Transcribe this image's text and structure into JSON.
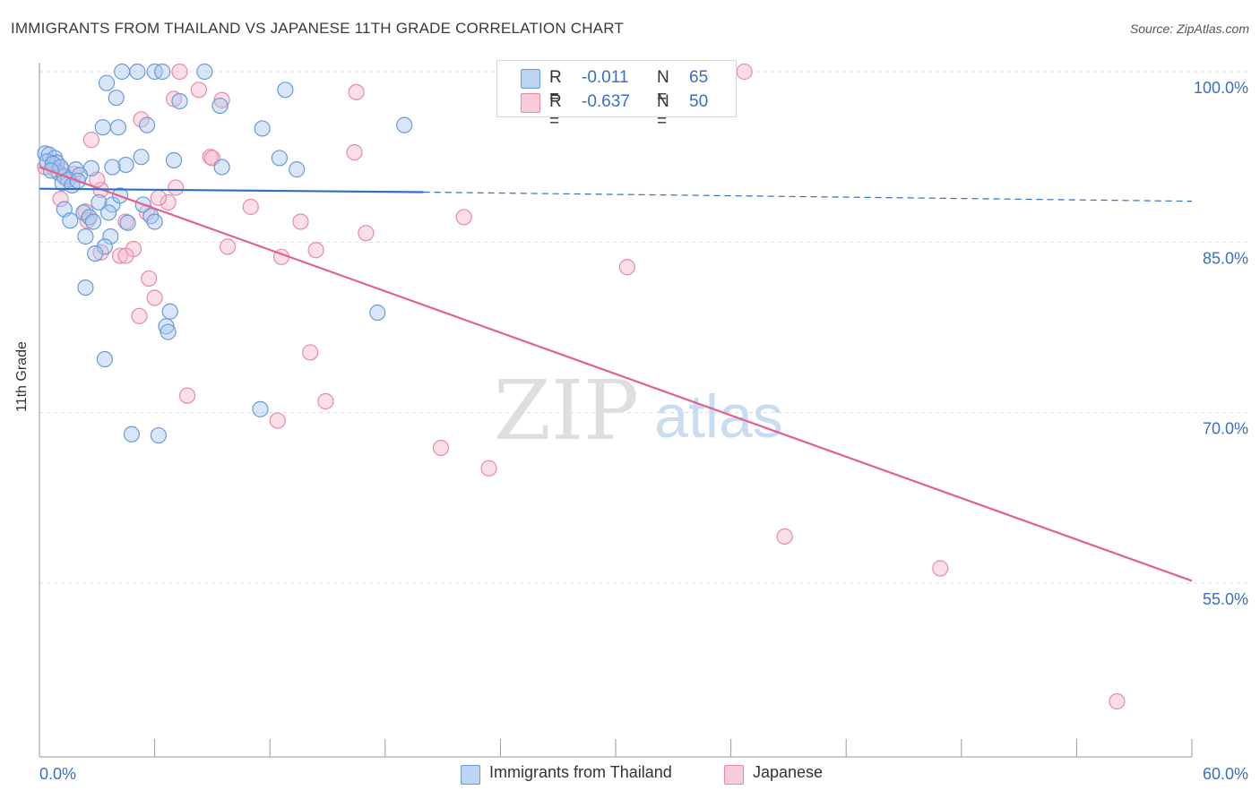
{
  "header": {
    "title": "IMMIGRANTS FROM THAILAND VS JAPANESE 11TH GRADE CORRELATION CHART",
    "source": "Source: ZipAtlas.com"
  },
  "watermark": {
    "zip": "ZIP",
    "atlas": "atlas"
  },
  "legend_top": {
    "rows": [
      {
        "r_label": "R =",
        "r_value": "-0.011",
        "n_label": "N =",
        "n_value": "65"
      },
      {
        "r_label": "R =",
        "r_value": "-0.637",
        "n_label": "N =",
        "n_value": "50"
      }
    ]
  },
  "legend_bottom": {
    "items": [
      "Immigrants from Thailand",
      "Japanese"
    ]
  },
  "colors": {
    "blue_fill": "#a9c8ef",
    "blue_stroke": "#6a9bd8",
    "blue_line": "#2f6fc6",
    "pink_fill": "#f6b8cb",
    "pink_stroke": "#e98aa8",
    "pink_line": "#e0628f",
    "tick_label": "#3a6fc4",
    "grid": "#dcdcdc"
  },
  "chart_data": {
    "type": "scatter",
    "title": "IMMIGRANTS FROM THAILAND VS JAPANESE 11TH GRADE CORRELATION CHART",
    "xlabel": "",
    "ylabel": "11th Grade",
    "xlim": [
      0,
      60
    ],
    "ylim": [
      40,
      101
    ],
    "x_tick_labels": [
      {
        "value": 0,
        "label": "0.0%"
      },
      {
        "value": 60,
        "label": "60.0%"
      }
    ],
    "y_tick_labels": [
      {
        "value": 100,
        "label": "100.0%"
      },
      {
        "value": 85,
        "label": "85.0%"
      },
      {
        "value": 70,
        "label": "70.0%"
      },
      {
        "value": 55,
        "label": "55.0%"
      }
    ],
    "x_minor_ticks": [
      0,
      6,
      12,
      18,
      24,
      30,
      36,
      42,
      48,
      54,
      60
    ],
    "y_gridlines": [
      100,
      85,
      70,
      55
    ],
    "series": [
      {
        "name": "Immigrants from Thailand",
        "color": "blue",
        "trend": {
          "x": [
            0,
            20
          ],
          "y": [
            89.7,
            89.4
          ],
          "dashed_to_x": 60,
          "dashed_end_y": 88.6
        },
        "points": [
          [
            4.3,
            100
          ],
          [
            5.1,
            100
          ],
          [
            6.0,
            100
          ],
          [
            6.4,
            100
          ],
          [
            8.6,
            100
          ],
          [
            3.5,
            99.0
          ],
          [
            12.8,
            98.4
          ],
          [
            4.0,
            97.7
          ],
          [
            7.3,
            97.4
          ],
          [
            9.4,
            97.0
          ],
          [
            3.3,
            95.1
          ],
          [
            4.1,
            95.1
          ],
          [
            5.6,
            95.3
          ],
          [
            11.6,
            95.0
          ],
          [
            19.0,
            95.3
          ],
          [
            0.3,
            92.8
          ],
          [
            0.5,
            92.7
          ],
          [
            0.8,
            92.4
          ],
          [
            0.9,
            92.0
          ],
          [
            0.4,
            92.1
          ],
          [
            5.3,
            92.5
          ],
          [
            7.0,
            92.2
          ],
          [
            12.5,
            92.4
          ],
          [
            4.5,
            91.8
          ],
          [
            3.8,
            91.6
          ],
          [
            9.5,
            91.6
          ],
          [
            13.4,
            91.4
          ],
          [
            1.9,
            91.4
          ],
          [
            2.7,
            91.5
          ],
          [
            1.0,
            91.1
          ],
          [
            1.3,
            90.8
          ],
          [
            2.1,
            90.9
          ],
          [
            1.5,
            90.5
          ],
          [
            1.2,
            90.2
          ],
          [
            1.7,
            90.0
          ],
          [
            3.1,
            88.5
          ],
          [
            3.8,
            88.3
          ],
          [
            5.4,
            88.3
          ],
          [
            1.3,
            87.9
          ],
          [
            2.3,
            87.6
          ],
          [
            3.6,
            87.6
          ],
          [
            2.6,
            87.2
          ],
          [
            5.8,
            87.3
          ],
          [
            1.6,
            86.9
          ],
          [
            2.8,
            86.8
          ],
          [
            4.6,
            86.7
          ],
          [
            6.0,
            86.8
          ],
          [
            2.4,
            85.5
          ],
          [
            3.7,
            85.5
          ],
          [
            3.4,
            84.6
          ],
          [
            2.9,
            84.0
          ],
          [
            2.4,
            81.0
          ],
          [
            6.8,
            78.9
          ],
          [
            17.6,
            78.8
          ],
          [
            6.6,
            77.6
          ],
          [
            6.7,
            77.1
          ],
          [
            3.4,
            74.7
          ],
          [
            11.5,
            70.3
          ],
          [
            4.8,
            68.1
          ],
          [
            6.2,
            68.0
          ],
          [
            0.7,
            91.9
          ],
          [
            1.1,
            91.6
          ],
          [
            0.6,
            91.3
          ],
          [
            2.0,
            90.4
          ],
          [
            4.2,
            89.1
          ]
        ]
      },
      {
        "name": "Japanese",
        "color": "pink",
        "trend": {
          "x": [
            0,
            60
          ],
          "y": [
            91.6,
            55.2
          ]
        },
        "points": [
          [
            36.7,
            100
          ],
          [
            7.3,
            100
          ],
          [
            8.3,
            98.4
          ],
          [
            16.5,
            98.2
          ],
          [
            7.0,
            97.6
          ],
          [
            9.5,
            97.5
          ],
          [
            5.3,
            95.8
          ],
          [
            2.7,
            94.0
          ],
          [
            16.4,
            92.9
          ],
          [
            8.9,
            92.5
          ],
          [
            9.0,
            92.4
          ],
          [
            0.3,
            91.6
          ],
          [
            0.8,
            91.4
          ],
          [
            1.2,
            91.3
          ],
          [
            1.8,
            91.0
          ],
          [
            1.3,
            90.7
          ],
          [
            7.1,
            89.8
          ],
          [
            3.2,
            89.6
          ],
          [
            6.7,
            88.5
          ],
          [
            11.0,
            88.1
          ],
          [
            1.1,
            88.8
          ],
          [
            2.4,
            87.7
          ],
          [
            5.6,
            87.6
          ],
          [
            22.1,
            87.2
          ],
          [
            2.5,
            86.9
          ],
          [
            4.5,
            86.8
          ],
          [
            13.6,
            86.8
          ],
          [
            17.0,
            85.8
          ],
          [
            9.8,
            84.6
          ],
          [
            4.9,
            84.4
          ],
          [
            14.4,
            84.3
          ],
          [
            3.2,
            84.1
          ],
          [
            4.2,
            83.8
          ],
          [
            4.5,
            83.8
          ],
          [
            12.6,
            83.7
          ],
          [
            30.6,
            82.8
          ],
          [
            5.7,
            81.8
          ],
          [
            6.0,
            80.1
          ],
          [
            5.2,
            78.5
          ],
          [
            14.1,
            75.3
          ],
          [
            7.7,
            71.5
          ],
          [
            14.9,
            71.0
          ],
          [
            12.4,
            69.3
          ],
          [
            20.9,
            66.9
          ],
          [
            23.4,
            65.1
          ],
          [
            38.8,
            59.1
          ],
          [
            46.9,
            56.3
          ],
          [
            56.1,
            44.6
          ],
          [
            3.0,
            90.5
          ],
          [
            6.2,
            88.9
          ]
        ]
      }
    ]
  }
}
